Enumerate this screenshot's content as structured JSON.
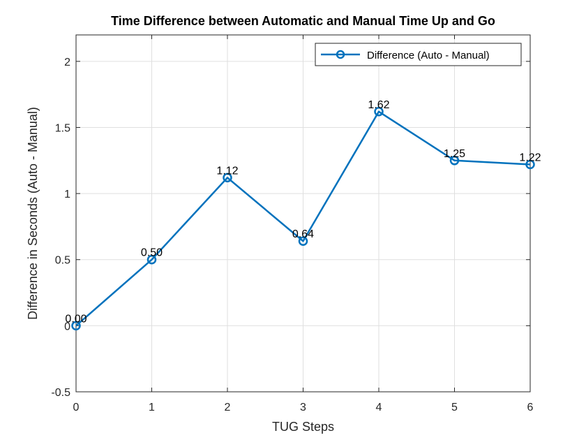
{
  "chart_data": {
    "type": "line",
    "title": "Time Difference between Automatic and Manual Time Up and Go",
    "xlabel": "TUG Steps",
    "ylabel": "Difference in Seconds (Auto - Manual)",
    "xlim": [
      0,
      6
    ],
    "ylim": [
      -0.5,
      2.2
    ],
    "xticks": [
      0,
      1,
      2,
      3,
      4,
      5,
      6
    ],
    "yticks": [
      -0.5,
      0,
      0.5,
      1,
      1.5,
      2
    ],
    "ytick_labels": [
      "-0.5",
      "0",
      "0.5",
      "1",
      "1.5",
      "2"
    ],
    "grid": true,
    "legend_position": "top-right",
    "series": [
      {
        "name": "Difference (Auto - Manual)",
        "color": "#0072BD",
        "marker": "circle",
        "x": [
          0,
          1,
          2,
          3,
          4,
          5,
          6
        ],
        "y": [
          0.0,
          0.5,
          1.12,
          0.64,
          1.62,
          1.25,
          1.22
        ],
        "labels": [
          "0.00",
          "0.50",
          "1.12",
          "0.64",
          "1.62",
          "1.25",
          "1.22"
        ]
      }
    ]
  }
}
